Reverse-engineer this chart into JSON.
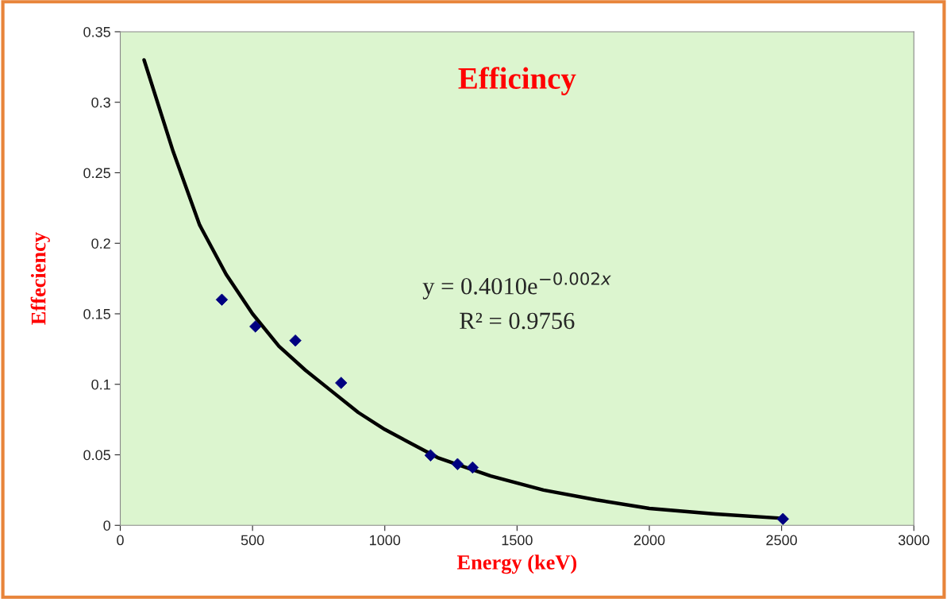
{
  "chart_data": {
    "type": "scatter",
    "title": "Efficincy",
    "xlabel": "Energy (keV)",
    "ylabel": "Effeciency",
    "annotations": [
      "y = 0.4010e$^{−0.002x}$",
      "R² = 0.9756"
    ],
    "xlim": [
      0,
      3000
    ],
    "xticks": [
      0,
      500,
      1000,
      1500,
      2000,
      2500,
      3000
    ],
    "ylim": [
      0,
      0.35
    ],
    "yticks": [
      0,
      0.05,
      0.1,
      0.15,
      0.2,
      0.25,
      0.3,
      0.35
    ],
    "grid": false,
    "legend": false,
    "marker": "diamond",
    "series": [
      {
        "color": "#000080",
        "x": [
          384,
          511,
          662,
          835,
          1173,
          1275,
          1332,
          2505
        ],
        "values": [
          0.16,
          0.141,
          0.131,
          0.101,
          0.0496,
          0.0434,
          0.041,
          0.0045
        ]
      },
      {
        "type": "line",
        "color": "#000000",
        "line_style": "solid",
        "marker": "none",
        "x": [
          90,
          200,
          300,
          400,
          500,
          600,
          700,
          800,
          900,
          1000,
          1200,
          1400,
          1600,
          1800,
          2000,
          2250,
          2500
        ],
        "values": [
          0.33,
          0.265,
          0.213,
          0.178,
          0.15,
          0.127,
          0.11,
          0.095,
          0.08,
          0.068,
          0.048,
          0.035,
          0.025,
          0.018,
          0.012,
          0.008,
          0.005
        ]
      }
    ]
  }
}
